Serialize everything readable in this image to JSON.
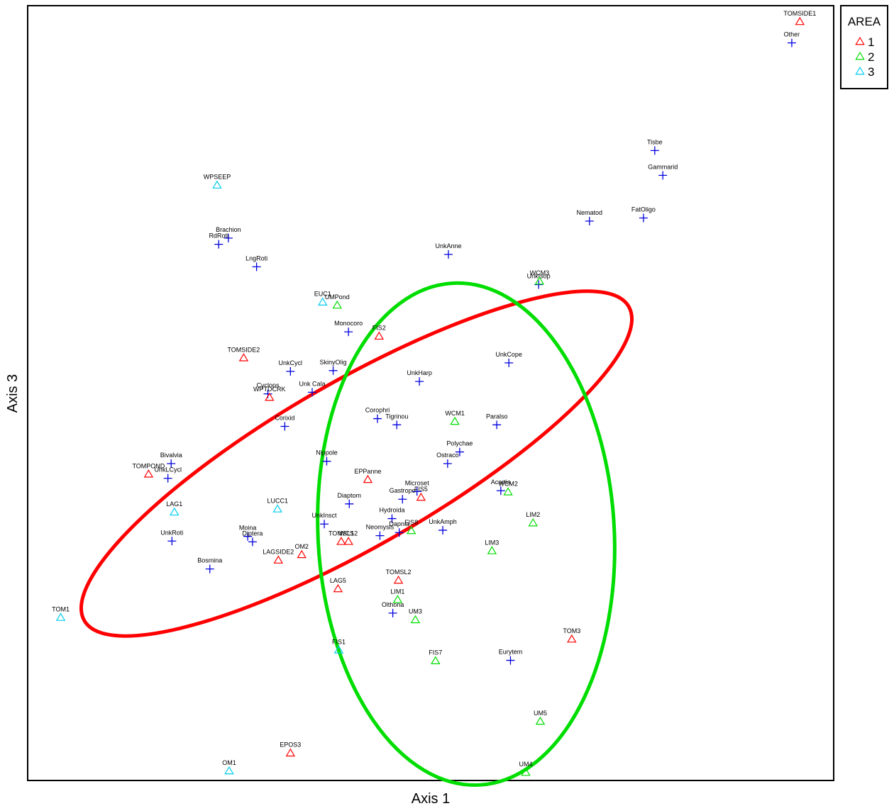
{
  "chart_data": {
    "type": "scatter",
    "xlabel": "Axis 1",
    "ylabel": "Axis 3",
    "xlim": [
      0,
      100
    ],
    "ylim": [
      0,
      100
    ],
    "grid": false,
    "legend": {
      "title": "AREA",
      "placement": "top-right outside plot",
      "entries": [
        {
          "label": "1",
          "marker": "triangle",
          "color": "#ff0000"
        },
        {
          "label": "2",
          "marker": "triangle",
          "color": "#00dd00"
        },
        {
          "label": "3",
          "marker": "triangle",
          "color": "#00ccee"
        }
      ]
    },
    "species_marker": {
      "marker": "plus",
      "color": "#0000dd"
    },
    "sites": [
      {
        "label": "TOMSIDE1",
        "x": 95.8,
        "y": 97.9,
        "area": "1"
      },
      {
        "label": "WPSEEP",
        "x": 23.5,
        "y": 76.8,
        "area": "3"
      },
      {
        "label": "EUC1",
        "x": 36.6,
        "y": 61.7,
        "area": "3"
      },
      {
        "label": "UMPond",
        "x": 38.4,
        "y": 61.3,
        "area": "2"
      },
      {
        "label": "WCM3",
        "x": 63.5,
        "y": 64.4,
        "area": "2"
      },
      {
        "label": "FIS2",
        "x": 43.6,
        "y": 57.3,
        "area": "1"
      },
      {
        "label": "TOMSIDE2",
        "x": 26.8,
        "y": 54.5,
        "area": "1"
      },
      {
        "label": "WPTDCRK",
        "x": 30.0,
        "y": 49.4,
        "area": "1"
      },
      {
        "label": "WCM1",
        "x": 53.0,
        "y": 46.3,
        "area": "2"
      },
      {
        "label": "TOMPOND",
        "x": 15.0,
        "y": 39.5,
        "area": "1"
      },
      {
        "label": "EPPanne",
        "x": 42.2,
        "y": 38.8,
        "area": "1"
      },
      {
        "label": "FIS5",
        "x": 48.8,
        "y": 36.5,
        "area": "1"
      },
      {
        "label": "WCM2",
        "x": 59.6,
        "y": 37.2,
        "area": "2"
      },
      {
        "label": "LAG1",
        "x": 18.2,
        "y": 34.6,
        "area": "3"
      },
      {
        "label": "LUCC1",
        "x": 31.0,
        "y": 35.0,
        "area": "3"
      },
      {
        "label": "LIM2",
        "x": 62.7,
        "y": 33.2,
        "area": "2"
      },
      {
        "label": "FIS8",
        "x": 47.6,
        "y": 32.2,
        "area": "2"
      },
      {
        "label": "TOMSL1",
        "x": 38.9,
        "y": 30.8,
        "area": "1"
      },
      {
        "label": "WCS2",
        "x": 39.8,
        "y": 30.8,
        "area": "1"
      },
      {
        "label": "LAGSIDE2",
        "x": 31.1,
        "y": 28.4,
        "area": "1"
      },
      {
        "label": "OM2",
        "x": 34.0,
        "y": 29.1,
        "area": "1"
      },
      {
        "label": "LIM3",
        "x": 57.6,
        "y": 29.6,
        "area": "2"
      },
      {
        "label": "TOMSL2",
        "x": 46.0,
        "y": 25.8,
        "area": "1"
      },
      {
        "label": "LAG5",
        "x": 38.5,
        "y": 24.7,
        "area": "1"
      },
      {
        "label": "LIM1",
        "x": 45.9,
        "y": 23.3,
        "area": "2"
      },
      {
        "label": "UM3",
        "x": 48.1,
        "y": 20.7,
        "area": "2"
      },
      {
        "label": "TOM1",
        "x": 4.1,
        "y": 21.0,
        "area": "3"
      },
      {
        "label": "TOM3",
        "x": 67.5,
        "y": 18.2,
        "area": "1"
      },
      {
        "label": "FIS1",
        "x": 38.6,
        "y": 16.8,
        "area": "3"
      },
      {
        "label": "FIS7",
        "x": 50.6,
        "y": 15.4,
        "area": "2"
      },
      {
        "label": "UM5",
        "x": 63.6,
        "y": 7.6,
        "area": "2"
      },
      {
        "label": "EPOS3",
        "x": 32.6,
        "y": 3.5,
        "area": "1"
      },
      {
        "label": "OM1",
        "x": 25.0,
        "y": 1.2,
        "area": "3"
      },
      {
        "label": "UM4",
        "x": 61.8,
        "y": 1.0,
        "area": "2"
      }
    ],
    "species": [
      {
        "label": "Other",
        "x": 94.8,
        "y": 95.2
      },
      {
        "label": "Tisbe",
        "x": 77.8,
        "y": 81.3
      },
      {
        "label": "Gammarid",
        "x": 78.8,
        "y": 78.1
      },
      {
        "label": "Nematod",
        "x": 69.7,
        "y": 72.2
      },
      {
        "label": "FatOligo",
        "x": 76.4,
        "y": 72.6
      },
      {
        "label": "Brachion",
        "x": 24.9,
        "y": 70.0
      },
      {
        "label": "RdRoti",
        "x": 23.7,
        "y": 69.2
      },
      {
        "label": "LngRoti",
        "x": 28.4,
        "y": 66.3
      },
      {
        "label": "UnkAnne",
        "x": 52.2,
        "y": 67.9
      },
      {
        "label": "UnkIsop",
        "x": 63.4,
        "y": 64.0
      },
      {
        "label": "Monocoro",
        "x": 39.8,
        "y": 57.9
      },
      {
        "label": "UnkCope",
        "x": 59.7,
        "y": 53.9
      },
      {
        "label": "UnkCycl",
        "x": 32.6,
        "y": 52.8
      },
      {
        "label": "SkinyOlig",
        "x": 37.9,
        "y": 52.9
      },
      {
        "label": "UnkHarp",
        "x": 48.6,
        "y": 51.5
      },
      {
        "label": "Cyclops",
        "x": 29.8,
        "y": 49.9
      },
      {
        "label": "Unk Cala",
        "x": 35.3,
        "y": 50.1
      },
      {
        "label": "Corophri",
        "x": 43.4,
        "y": 46.7
      },
      {
        "label": "Tigrinou",
        "x": 45.8,
        "y": 45.9
      },
      {
        "label": "Paralso",
        "x": 58.2,
        "y": 45.9
      },
      {
        "label": "Corixid",
        "x": 31.9,
        "y": 45.7
      },
      {
        "label": "Polychae",
        "x": 53.6,
        "y": 42.4
      },
      {
        "label": "Ostraco",
        "x": 52.1,
        "y": 40.9
      },
      {
        "label": "Nippole",
        "x": 37.1,
        "y": 41.2
      },
      {
        "label": "Bivalvia",
        "x": 17.8,
        "y": 40.9
      },
      {
        "label": "UnkLCycl",
        "x": 17.4,
        "y": 39.0
      },
      {
        "label": "Acartia",
        "x": 58.7,
        "y": 37.4
      },
      {
        "label": "Microset",
        "x": 48.3,
        "y": 37.3
      },
      {
        "label": "Gastropo",
        "x": 46.5,
        "y": 36.3
      },
      {
        "label": "Diaptom",
        "x": 39.9,
        "y": 35.7
      },
      {
        "label": "Hydroida",
        "x": 45.2,
        "y": 33.8
      },
      {
        "label": "UnkInsct",
        "x": 36.8,
        "y": 33.1
      },
      {
        "label": "UnkAmph",
        "x": 51.5,
        "y": 32.3
      },
      {
        "label": "Dapnia",
        "x": 46.1,
        "y": 32.0
      },
      {
        "label": "Neomysis",
        "x": 43.7,
        "y": 31.6
      },
      {
        "label": "Moina",
        "x": 27.3,
        "y": 31.5
      },
      {
        "label": "Diptera",
        "x": 27.9,
        "y": 30.8
      },
      {
        "label": "UnkRoti",
        "x": 17.9,
        "y": 30.9
      },
      {
        "label": "Bosmina",
        "x": 22.6,
        "y": 27.3
      },
      {
        "label": "Olthona",
        "x": 45.3,
        "y": 21.6
      },
      {
        "label": "Eurytem",
        "x": 59.9,
        "y": 15.5
      }
    ],
    "ellipses": [
      {
        "group": "1",
        "color": "#ff0000",
        "cx": 40.8,
        "cy": 40.9,
        "semi_major": 39.0,
        "semi_minor": 10.6,
        "angle_deg": -30
      },
      {
        "group": "2",
        "color": "#00dd00",
        "cx": 54.4,
        "cy": 31.8,
        "semi_major": 31.2,
        "semi_minor": 19.1,
        "angle_deg": 87
      }
    ]
  }
}
